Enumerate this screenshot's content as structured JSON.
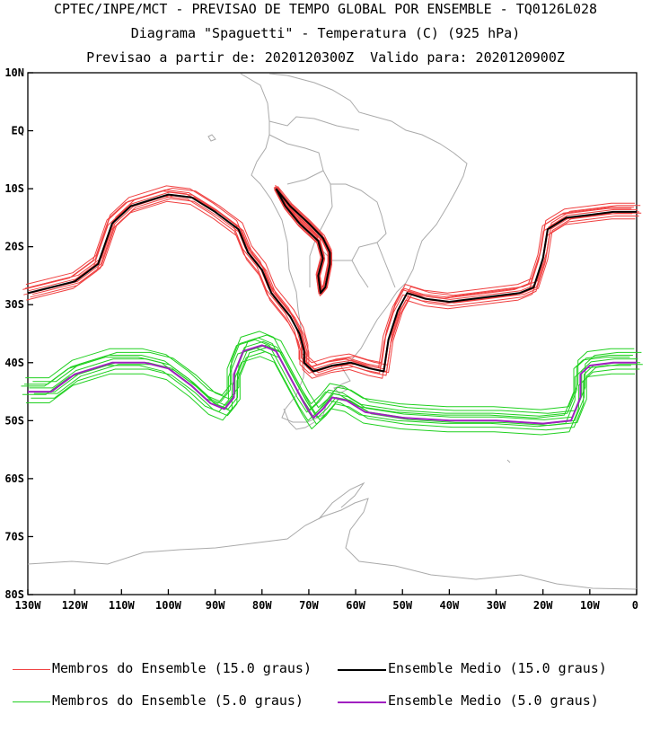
{
  "title": {
    "line1": "CPTEC/INPE/MCT - PREVISAO DE TEMPO GLOBAL POR ENSEMBLE - TQ0126L028",
    "line2": "Diagrama \"Spaguetti\" - Temperatura (C) (925 hPa)",
    "line3": "Previsao a partir de: 2020120300Z  Valido para: 2020120900Z"
  },
  "axes": {
    "lat_labels": [
      "10N",
      "EQ",
      "10S",
      "20S",
      "30S",
      "40S",
      "50S",
      "60S",
      "70S",
      "80S"
    ],
    "lon_labels": [
      "130W",
      "120W",
      "110W",
      "100W",
      "90W",
      "80W",
      "70W",
      "60W",
      "50W",
      "40W",
      "30W",
      "20W",
      "10W",
      "0"
    ]
  },
  "legend": {
    "members_15": "Membros do Ensemble (15.0 graus)",
    "mean_15": "Ensemble Medio (15.0 graus)",
    "members_5": "Membros do Ensemble (5.0 graus)",
    "mean_5": "Ensemble Medio (5.0 graus)"
  },
  "colors": {
    "members_15": "#f04040",
    "mean_15": "#000000",
    "members_5": "#20d020",
    "mean_5": "#a020c0",
    "coast": "#aaaaaa"
  },
  "contours": {
    "mean_15": [
      [
        -130,
        -28
      ],
      [
        -120,
        -26
      ],
      [
        -115,
        -23
      ],
      [
        -112,
        -16
      ],
      [
        -108,
        -13
      ],
      [
        -100,
        -11
      ],
      [
        -95,
        -11.5
      ],
      [
        -90,
        -14
      ],
      [
        -85,
        -17
      ],
      [
        -83,
        -21
      ],
      [
        -80,
        -24
      ],
      [
        -78,
        -28
      ],
      [
        -76,
        -30
      ],
      [
        -74,
        -32
      ],
      [
        -72,
        -35
      ],
      [
        -71,
        -38
      ],
      [
        -71,
        -40
      ],
      [
        -69,
        -41.5
      ],
      [
        -65,
        -40.5
      ],
      [
        -61,
        -40
      ],
      [
        -57,
        -41
      ],
      [
        -54,
        -41.5
      ],
      [
        -53,
        -36
      ],
      [
        -51,
        -31
      ],
      [
        -49,
        -28
      ],
      [
        -45,
        -29
      ],
      [
        -40,
        -29.5
      ],
      [
        -35,
        -29
      ],
      [
        -30,
        -28.5
      ],
      [
        -25,
        -28
      ],
      [
        -22,
        -27
      ],
      [
        -20,
        -22
      ],
      [
        -19,
        -17
      ],
      [
        -15,
        -15
      ],
      [
        -10,
        -14.5
      ],
      [
        -5,
        -14
      ],
      [
        0,
        -14
      ]
    ],
    "mean_5": [
      [
        -130,
        -45
      ],
      [
        -125,
        -45
      ],
      [
        -120,
        -42
      ],
      [
        -112,
        -40
      ],
      [
        -105,
        -40
      ],
      [
        -100,
        -41
      ],
      [
        -95,
        -44
      ],
      [
        -91,
        -47
      ],
      [
        -88,
        -48
      ],
      [
        -86,
        -46
      ],
      [
        -86,
        -42
      ],
      [
        -84,
        -38
      ],
      [
        -80,
        -37
      ],
      [
        -77,
        -38
      ],
      [
        -75,
        -41
      ],
      [
        -73,
        -44
      ],
      [
        -71,
        -47
      ],
      [
        -69,
        -49.5
      ],
      [
        -67,
        -48
      ],
      [
        -65,
        -46
      ],
      [
        -62,
        -46.5
      ],
      [
        -58,
        -48.5
      ],
      [
        -50,
        -49.5
      ],
      [
        -40,
        -50
      ],
      [
        -30,
        -50
      ],
      [
        -20,
        -50.5
      ],
      [
        -14,
        -50
      ],
      [
        -12,
        -46
      ],
      [
        -12,
        -42
      ],
      [
        -10,
        -40.5
      ],
      [
        -5,
        -40
      ],
      [
        0,
        -40
      ]
    ],
    "andes_mean_15": [
      [
        -77,
        -10
      ],
      [
        -74,
        -13
      ],
      [
        -70,
        -16
      ],
      [
        -67,
        -18.5
      ],
      [
        -65.5,
        -21
      ],
      [
        -65.5,
        -23
      ],
      [
        -66,
        -25
      ],
      [
        -66.5,
        -27
      ],
      [
        -67.5,
        -28
      ],
      [
        -68,
        -25
      ],
      [
        -67,
        -22
      ],
      [
        -68,
        -19
      ],
      [
        -72,
        -16
      ],
      [
        -75,
        -13
      ],
      [
        -77,
        -10
      ]
    ]
  }
}
